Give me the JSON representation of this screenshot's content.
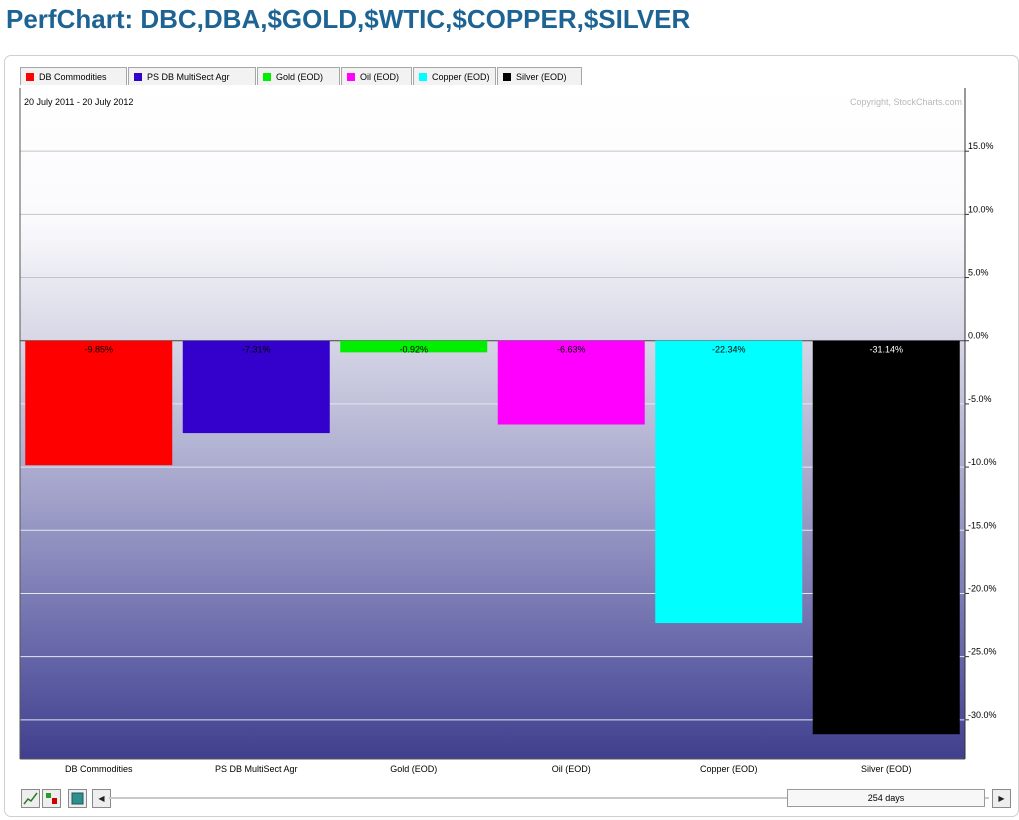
{
  "title": "PerfChart: DBC,DBA,$GOLD,$WTIC,$COPPER,$SILVER",
  "legend": [
    {
      "label": "DB Commodities",
      "color": "#ff0000"
    },
    {
      "label": "PS DB MultiSect  Agr",
      "color": "#3300cc"
    },
    {
      "label": "Gold (EOD)",
      "color": "#00ee00"
    },
    {
      "label": "Oil (EOD)",
      "color": "#ff00ff"
    },
    {
      "label": "Copper (EOD)",
      "color": "#00ffff"
    },
    {
      "label": "Silver (EOD)",
      "color": "#000000"
    }
  ],
  "chart_data": {
    "type": "bar",
    "date_range": "20 July 2011 - 20 July 2012",
    "copyright": "Copyright, StockCharts.com",
    "categories": [
      "DB Commodities",
      "PS DB MultiSect  Agr",
      "Gold (EOD)",
      "Oil (EOD)",
      "Copper (EOD)",
      "Silver (EOD)"
    ],
    "values": [
      -9.85,
      -7.31,
      -0.92,
      -6.63,
      -22.34,
      -31.14
    ],
    "value_labels": [
      "-9.85%",
      "-7.31%",
      "-0.92%",
      "-6.63%",
      "-22.34%",
      "-31.14%"
    ],
    "colors": [
      "#ff0000",
      "#3300cc",
      "#00ee00",
      "#ff00ff",
      "#00ffff",
      "#000000"
    ],
    "yticks": [
      15,
      10,
      5,
      0,
      -5,
      -10,
      -15,
      -20,
      -25,
      -30
    ],
    "ytick_labels": [
      "15.0%",
      "10.0%",
      "5.0%",
      "0.0%",
      "-5.0%",
      "-10.0%",
      "-15.0%",
      "-20.0%",
      "-25.0%",
      "-30.0%"
    ],
    "ylim": [
      -33.1,
      20
    ],
    "grid": true,
    "y_axis_position": "right"
  },
  "controls": {
    "days_label": "254 days"
  }
}
